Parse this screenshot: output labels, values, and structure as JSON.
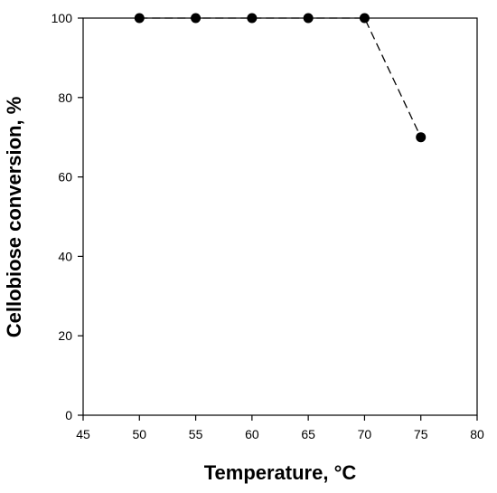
{
  "chart_data": {
    "type": "line",
    "title": "",
    "xlabel": "Temperature, °C",
    "ylabel": "Cellobiose conversion, %",
    "xlim": [
      45,
      80
    ],
    "ylim": [
      0,
      100
    ],
    "x_ticks": [
      45,
      50,
      55,
      60,
      65,
      70,
      75,
      80
    ],
    "y_ticks": [
      0,
      20,
      40,
      60,
      80,
      100
    ],
    "grid": false,
    "legend": "none",
    "series": [
      {
        "x": [
          50,
          55,
          60,
          65,
          70,
          75
        ],
        "y": [
          100,
          100,
          100,
          100,
          100,
          70
        ],
        "line_style": "dashed",
        "marker": "filled-circle",
        "color": "#000000"
      }
    ]
  }
}
